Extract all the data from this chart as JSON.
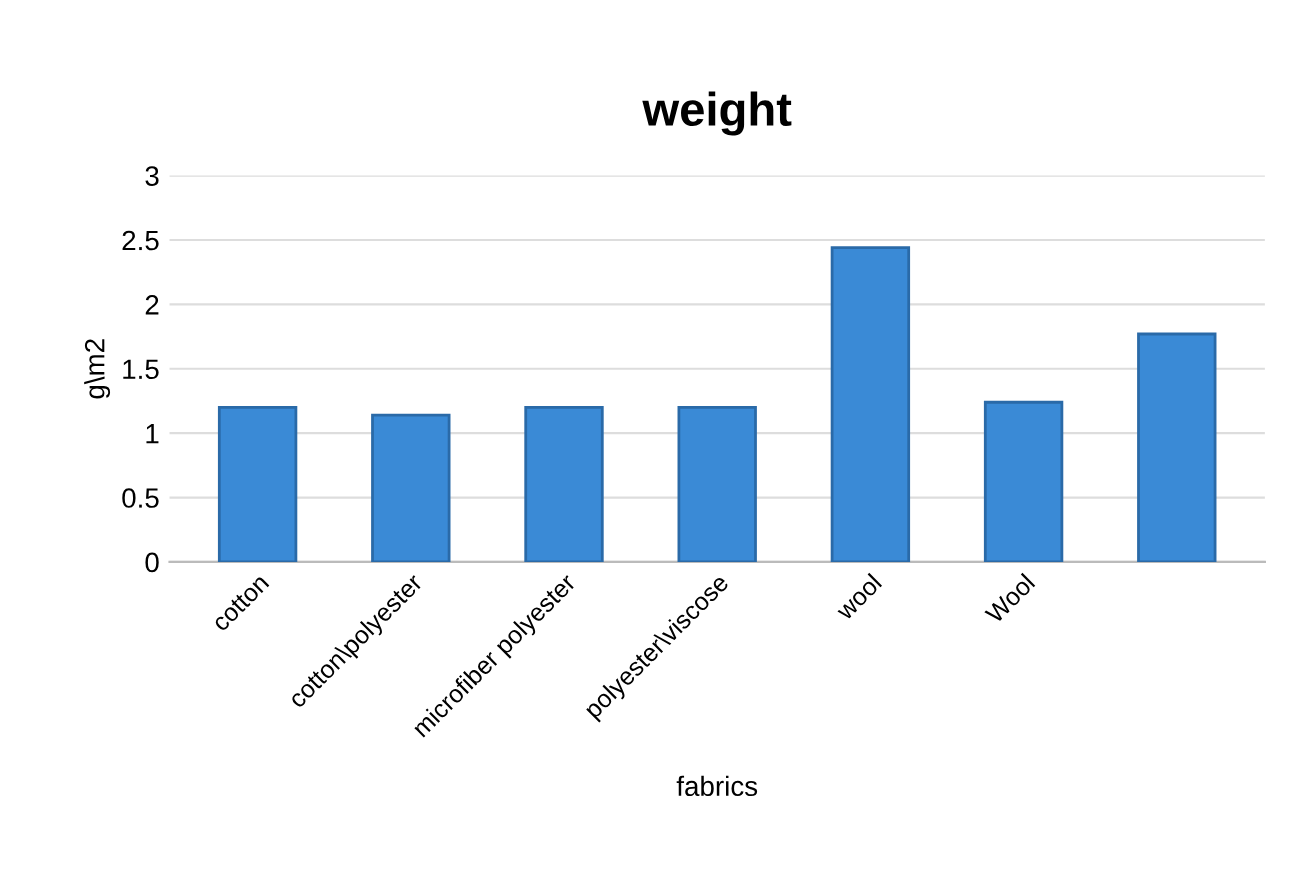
{
  "chart_data": {
    "type": "bar",
    "title": "weight",
    "xlabel": "fabrics",
    "ylabel": "g\\m2",
    "categories": [
      "cotton",
      "cotton\\polyester",
      "microfiber polyester",
      "polyester\\viscose",
      "wool",
      "Wool",
      null
    ],
    "values": [
      1.2,
      1.14,
      1.2,
      1.2,
      2.44,
      1.24,
      1.77
    ],
    "color": "#3a8ad6",
    "ylim": [
      0,
      3
    ],
    "yticks": [
      0,
      0.5,
      1,
      1.5,
      2,
      2.5,
      3
    ],
    "grid": "y",
    "legend": false
  }
}
